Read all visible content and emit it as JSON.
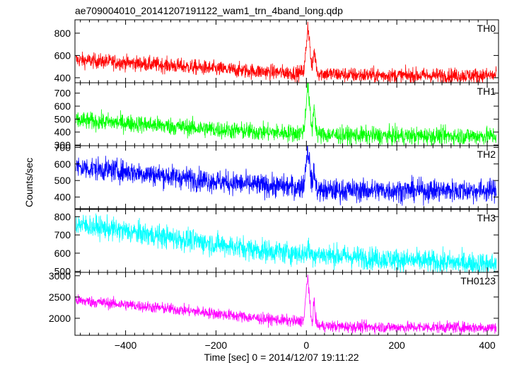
{
  "chart_data": {
    "type": "line",
    "title": "ae709004010_20141207191122_wam1_trn_4band_long.qdp",
    "xlabel": "Time [sec] 0 = 2014/12/07 19:11:22",
    "ylabel": "Counts/sec",
    "xlim": [
      -512,
      425
    ],
    "x_ticks": [
      -400,
      -200,
      0,
      200,
      400
    ],
    "x_tick_labels": [
      "−400",
      "−200",
      "0",
      "200",
      "400"
    ],
    "grid": false,
    "panels": [
      {
        "name": "TH0",
        "color": "#ff0000",
        "ylim": [
          355,
          920
        ],
        "yticks": [
          400,
          600,
          800
        ],
        "x": [
          -510,
          -400,
          -300,
          -200,
          -100,
          -15,
          -5,
          0,
          3,
          6,
          10,
          13,
          17,
          20,
          25,
          100,
          200,
          300,
          420
        ],
        "y": [
          560,
          535,
          510,
          480,
          455,
          440,
          470,
          700,
          870,
          780,
          560,
          470,
          650,
          560,
          440,
          425,
          420,
          420,
          420
        ]
      },
      {
        "name": "TH1",
        "color": "#00ff00",
        "ylim": [
          295,
          780
        ],
        "yticks": [
          300,
          400,
          500,
          600,
          700
        ],
        "x": [
          -510,
          -400,
          -300,
          -200,
          -100,
          -15,
          -5,
          0,
          3,
          6,
          10,
          13,
          17,
          20,
          25,
          100,
          200,
          300,
          420
        ],
        "y": [
          490,
          470,
          445,
          420,
          400,
          390,
          420,
          650,
          760,
          650,
          470,
          420,
          620,
          470,
          380,
          375,
          370,
          370,
          370
        ]
      },
      {
        "name": "TH2",
        "color": "#0000ff",
        "ylim": [
          330,
          710
        ],
        "yticks": [
          400,
          500,
          600,
          700
        ],
        "x": [
          -510,
          -400,
          -300,
          -200,
          -100,
          -15,
          -5,
          0,
          3,
          6,
          10,
          13,
          17,
          20,
          25,
          100,
          200,
          300,
          420
        ],
        "y": [
          580,
          555,
          525,
          495,
          470,
          460,
          480,
          640,
          690,
          640,
          520,
          460,
          580,
          480,
          440,
          440,
          440,
          440,
          440
        ]
      },
      {
        "name": "TH3",
        "color": "#00ffff",
        "ylim": [
          495,
          840
        ],
        "yticks": [
          500,
          600,
          700,
          800
        ],
        "x": [
          -510,
          -400,
          -300,
          -200,
          -100,
          0,
          3,
          6,
          10,
          100,
          200,
          300,
          420
        ],
        "y": [
          760,
          720,
          685,
          650,
          615,
          595,
          640,
          610,
          595,
          580,
          565,
          550,
          540
        ]
      },
      {
        "name": "TH0123",
        "color": "#ff00ff",
        "ylim": [
          1600,
          3080
        ],
        "yticks": [
          2000,
          2500,
          3000
        ],
        "x": [
          -510,
          -400,
          -300,
          -200,
          -100,
          -15,
          -5,
          0,
          3,
          6,
          10,
          13,
          17,
          20,
          25,
          100,
          200,
          300,
          420
        ],
        "y": [
          2420,
          2320,
          2220,
          2110,
          1990,
          1920,
          2000,
          2700,
          3000,
          2600,
          2000,
          1900,
          2450,
          2000,
          1820,
          1800,
          1790,
          1790,
          1780
        ]
      }
    ]
  }
}
